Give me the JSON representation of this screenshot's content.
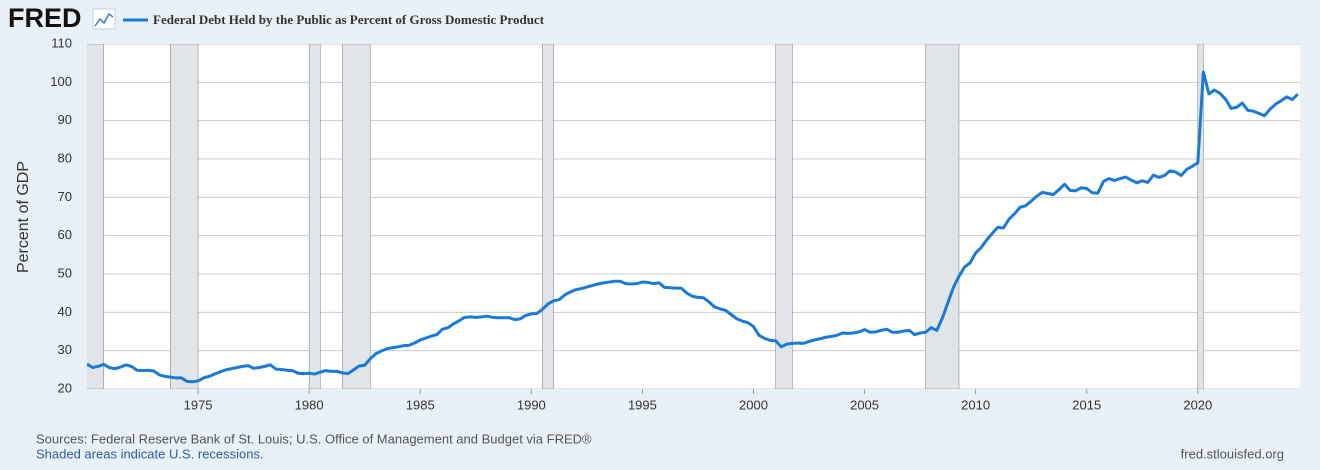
{
  "logo": "FRED",
  "chart_data": {
    "type": "line",
    "series": [
      {
        "name": "Federal Debt Held by the Public as Percent of Gross Domestic Product",
        "color": "#1a7ad9",
        "x": [
          1970,
          1970.25,
          1970.5,
          1970.75,
          1971,
          1971.25,
          1971.5,
          1971.75,
          1972,
          1972.25,
          1972.5,
          1972.75,
          1973,
          1973.25,
          1973.5,
          1973.75,
          1974,
          1974.25,
          1974.5,
          1974.75,
          1975,
          1975.25,
          1975.5,
          1975.75,
          1976,
          1976.25,
          1976.5,
          1976.75,
          1977,
          1977.25,
          1977.5,
          1977.75,
          1978,
          1978.25,
          1978.5,
          1978.75,
          1979,
          1979.25,
          1979.5,
          1979.75,
          1980,
          1980.25,
          1980.5,
          1980.75,
          1981,
          1981.25,
          1981.5,
          1981.75,
          1982,
          1982.25,
          1982.5,
          1982.75,
          1983,
          1983.25,
          1983.5,
          1983.75,
          1984,
          1984.25,
          1984.5,
          1984.75,
          1985,
          1985.25,
          1985.5,
          1985.75,
          1986,
          1986.25,
          1986.5,
          1986.75,
          1987,
          1987.25,
          1987.5,
          1987.75,
          1988,
          1988.25,
          1988.5,
          1988.75,
          1989,
          1989.25,
          1989.5,
          1989.75,
          1990,
          1990.25,
          1990.5,
          1990.75,
          1991,
          1991.25,
          1991.5,
          1991.75,
          1992,
          1992.25,
          1992.5,
          1992.75,
          1993,
          1993.25,
          1993.5,
          1993.75,
          1994,
          1994.25,
          1994.5,
          1994.75,
          1995,
          1995.25,
          1995.5,
          1995.75,
          1996,
          1996.25,
          1996.5,
          1996.75,
          1997,
          1997.25,
          1997.5,
          1997.75,
          1998,
          1998.25,
          1998.5,
          1998.75,
          1999,
          1999.25,
          1999.5,
          1999.75,
          2000,
          2000.25,
          2000.5,
          2000.75,
          2001,
          2001.25,
          2001.5,
          2001.75,
          2002,
          2002.25,
          2002.5,
          2002.75,
          2003,
          2003.25,
          2003.5,
          2003.75,
          2004,
          2004.25,
          2004.5,
          2004.75,
          2005,
          2005.25,
          2005.5,
          2005.75,
          2006,
          2006.25,
          2006.5,
          2006.75,
          2007,
          2007.25,
          2007.5,
          2007.75,
          2008,
          2008.25,
          2008.5,
          2008.75,
          2009,
          2009.25,
          2009.5,
          2009.75,
          2010,
          2010.25,
          2010.5,
          2010.75,
          2011,
          2011.25,
          2011.5,
          2011.75,
          2012,
          2012.25,
          2012.5,
          2012.75,
          2013,
          2013.25,
          2013.5,
          2013.75,
          2014,
          2014.25,
          2014.5,
          2014.75,
          2015,
          2015.25,
          2015.5,
          2015.75,
          2016,
          2016.25,
          2016.5,
          2016.75,
          2017,
          2017.25,
          2017.5,
          2017.75,
          2018,
          2018.25,
          2018.5,
          2018.75,
          2019,
          2019.25,
          2019.5,
          2019.75,
          2020,
          2020.25,
          2020.5,
          2020.75,
          2021,
          2021.25,
          2021.5,
          2021.75,
          2022,
          2022.25,
          2022.5,
          2022.75,
          2023,
          2023.25,
          2023.5,
          2023.75,
          2024,
          2024.25,
          2024.5
        ],
        "values": [
          26.5,
          25.6,
          25.9,
          26.4,
          25.6,
          25.3,
          25.7,
          26.3,
          25.9,
          24.9,
          24.8,
          24.9,
          24.7,
          23.7,
          23.3,
          23.1,
          22.9,
          22.9,
          22.0,
          21.9,
          22.1,
          22.9,
          23.3,
          23.9,
          24.5,
          25.0,
          25.3,
          25.6,
          25.9,
          26.1,
          25.4,
          25.6,
          25.9,
          26.3,
          25.2,
          25.1,
          24.9,
          24.8,
          24.1,
          24.0,
          24.1,
          23.9,
          24.4,
          24.8,
          24.6,
          24.6,
          24.2,
          24.0,
          25.0,
          26.0,
          26.2,
          27.9,
          29.2,
          29.9,
          30.5,
          30.8,
          31.0,
          31.3,
          31.4,
          32.0,
          32.8,
          33.3,
          33.8,
          34.2,
          35.6,
          36.0,
          37.0,
          37.8,
          38.7,
          38.8,
          38.7,
          38.8,
          39.0,
          38.7,
          38.6,
          38.6,
          38.6,
          38.1,
          38.3,
          39.2,
          39.6,
          39.7,
          40.8,
          42.2,
          43.0,
          43.3,
          44.5,
          45.3,
          45.9,
          46.2,
          46.6,
          47.0,
          47.4,
          47.7,
          47.9,
          48.1,
          48.1,
          47.5,
          47.4,
          47.5,
          47.9,
          47.8,
          47.5,
          47.7,
          46.5,
          46.4,
          46.3,
          46.3,
          45.0,
          44.2,
          43.9,
          43.8,
          42.7,
          41.4,
          40.9,
          40.5,
          39.4,
          38.3,
          37.7,
          37.3,
          36.3,
          34.0,
          33.2,
          32.7,
          32.6,
          31.0,
          31.7,
          31.9,
          32.0,
          31.9,
          32.4,
          32.8,
          33.1,
          33.5,
          33.7,
          34.0,
          34.6,
          34.5,
          34.6,
          34.9,
          35.5,
          34.8,
          34.9,
          35.3,
          35.6,
          34.8,
          34.8,
          35.1,
          35.3,
          34.2,
          34.6,
          34.8,
          36.0,
          35.3,
          38.5,
          42.5,
          46.5,
          49.4,
          51.8,
          52.9,
          55.5,
          56.9,
          58.9,
          60.6,
          62.2,
          62.0,
          64.3,
          65.7,
          67.4,
          67.8,
          69.0,
          70.3,
          71.3,
          71.0,
          70.7,
          72.0,
          73.4,
          71.8,
          71.7,
          72.5,
          72.3,
          71.2,
          71.1,
          74.1,
          74.9,
          74.4,
          74.9,
          75.3,
          74.5,
          73.8,
          74.3,
          73.9,
          75.8,
          75.2,
          75.7,
          76.9,
          76.6,
          75.7,
          77.3,
          78.1,
          79.0,
          102.7,
          97.0,
          98.0,
          97.1,
          95.6,
          93.2,
          93.5,
          94.6,
          92.7,
          92.5,
          91.9,
          91.3,
          93.0,
          94.3,
          95.2,
          96.2,
          95.5,
          96.9
        ]
      }
    ],
    "recessions": [
      [
        1969.75,
        1970.75
      ],
      [
        1973.75,
        1975.0
      ],
      [
        1980.0,
        1980.5
      ],
      [
        1981.5,
        1982.75
      ],
      [
        1990.5,
        1991.0
      ],
      [
        2001.0,
        2001.75
      ],
      [
        2007.75,
        2009.25
      ],
      [
        2020.0,
        2020.25
      ]
    ],
    "ylabel": "Percent of GDP",
    "xlim": [
      1970,
      2024.6
    ],
    "xticks": [
      1975,
      1980,
      1985,
      1990,
      1995,
      2000,
      2005,
      2010,
      2015,
      2020
    ],
    "ylim": [
      20,
      110
    ],
    "yticks": [
      20,
      30,
      40,
      50,
      60,
      70,
      80,
      90,
      100,
      110
    ],
    "grid": true
  },
  "footer": {
    "sources": "Sources: Federal Reserve Bank of St. Louis; U.S. Office of Management and Budget via FRED®",
    "note": "Shaded areas indicate U.S. recessions.",
    "site": "fred.stlouisfed.org"
  }
}
